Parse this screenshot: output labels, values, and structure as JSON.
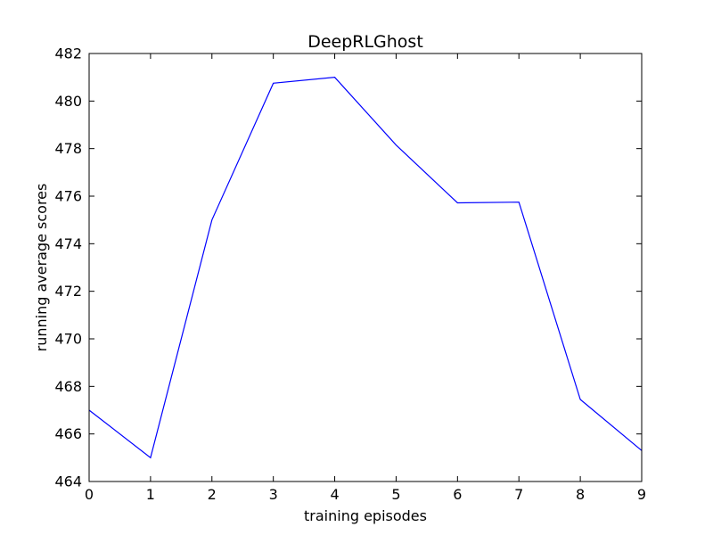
{
  "chart_data": {
    "type": "line",
    "title": "DeepRLGhost",
    "xlabel": "training episodes",
    "ylabel": "running average scores",
    "xlim": [
      0,
      9
    ],
    "ylim": [
      464,
      482
    ],
    "xticks": [
      0,
      1,
      2,
      3,
      4,
      5,
      6,
      7,
      8,
      9
    ],
    "yticks": [
      464,
      466,
      468,
      470,
      472,
      474,
      476,
      478,
      480,
      482
    ],
    "grid": false,
    "legend": "none",
    "series": [
      {
        "color": "#0000ff",
        "x": [
          0,
          1,
          2,
          3,
          4,
          5,
          6,
          7,
          8,
          9
        ],
        "y": [
          467.0,
          465.0,
          475.0,
          480.75,
          481.0,
          478.15,
          475.72,
          475.75,
          467.45,
          465.3
        ]
      }
    ]
  }
}
